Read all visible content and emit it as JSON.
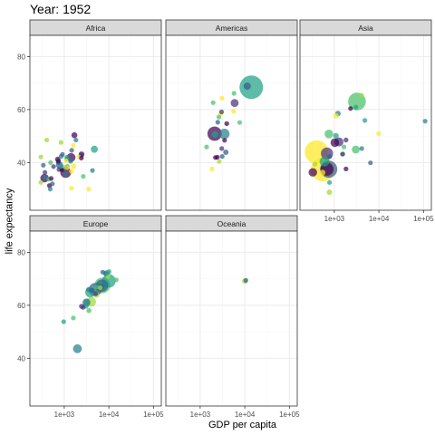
{
  "chart_data": {
    "type": "scatter",
    "title": "Year: 1952",
    "xlabel": "GDP per capita",
    "ylabel": "life expectancy",
    "x_scale": "log10",
    "xlim": [
      170,
      150000
    ],
    "ylim": [
      22,
      88
    ],
    "x_ticks": [
      1000,
      10000,
      100000
    ],
    "x_tick_labels": [
      "1e+03",
      "1e+04",
      "1e+05"
    ],
    "y_ticks": [
      40,
      60,
      80
    ],
    "y_tick_labels": [
      "40",
      "60",
      "80"
    ],
    "grid": true,
    "legend": "none",
    "panels": [
      {
        "name": "Africa",
        "points": [
          {
            "x": 2449,
            "y": 43.1,
            "size": 9
          },
          {
            "x": 3521,
            "y": 30.0,
            "size": 4
          },
          {
            "x": 1063,
            "y": 38.2,
            "size": 2.5
          },
          {
            "x": 851,
            "y": 47.6,
            "size": 0.4
          },
          {
            "x": 543,
            "y": 32.0,
            "size": 4.5
          },
          {
            "x": 339,
            "y": 39.0,
            "size": 2.4
          },
          {
            "x": 1173,
            "y": 38.5,
            "size": 5
          },
          {
            "x": 1071,
            "y": 35.5,
            "size": 1.3
          },
          {
            "x": 1179,
            "y": 38.1,
            "size": 2.7
          },
          {
            "x": 1103,
            "y": 40.7,
            "size": 0.2
          },
          {
            "x": 781,
            "y": 39.1,
            "size": 14
          },
          {
            "x": 2126,
            "y": 42.1,
            "size": 0.9
          },
          {
            "x": 1389,
            "y": 40.5,
            "size": 2.9
          },
          {
            "x": 2670,
            "y": 34.8,
            "size": 0.1
          },
          {
            "x": 1419,
            "y": 41.9,
            "size": 22
          },
          {
            "x": 376,
            "y": 34.5,
            "size": 1.4
          },
          {
            "x": 362,
            "y": 34.1,
            "size": 20
          },
          {
            "x": 4293,
            "y": 37.0,
            "size": 0.4
          },
          {
            "x": 485,
            "y": 30.0,
            "size": 0.3
          },
          {
            "x": 911,
            "y": 43.1,
            "size": 4.8
          },
          {
            "x": 510,
            "y": 34.0,
            "size": 2.7
          },
          {
            "x": 300,
            "y": 32.5,
            "size": 0.6
          },
          {
            "x": 854,
            "y": 42.3,
            "size": 6.5
          },
          {
            "x": 299,
            "y": 42.1,
            "size": 0.7
          },
          {
            "x": 576,
            "y": 38.5,
            "size": 0.9
          },
          {
            "x": 2388,
            "y": 42.7,
            "size": 1.0
          },
          {
            "x": 1443,
            "y": 36.7,
            "size": 4.8
          },
          {
            "x": 369,
            "y": 36.3,
            "size": 2.9
          },
          {
            "x": 452,
            "y": 33.7,
            "size": 3.8
          },
          {
            "x": 743,
            "y": 40.5,
            "size": 2.1
          },
          {
            "x": 1826,
            "y": 48.5,
            "size": 0.5
          },
          {
            "x": 1688,
            "y": 50.3,
            "size": 9.9
          },
          {
            "x": 468,
            "y": 31.3,
            "size": 6.4
          },
          {
            "x": 2423,
            "y": 41.7,
            "size": 0.5
          },
          {
            "x": 761,
            "y": 37.4,
            "size": 3.4
          },
          {
            "x": 1077,
            "y": 36.3,
            "size": 33
          },
          {
            "x": 493,
            "y": 40.0,
            "size": 2.5
          },
          {
            "x": 1600,
            "y": 46.5,
            "size": 0.3
          },
          {
            "x": 880,
            "y": 37.3,
            "size": 2.8
          },
          {
            "x": 1450,
            "y": 30.3,
            "size": 2.1
          },
          {
            "x": 4725,
            "y": 45.0,
            "size": 14
          },
          {
            "x": 1615,
            "y": 38.6,
            "size": 8.5
          },
          {
            "x": 1148,
            "y": 41.4,
            "size": 0.3
          },
          {
            "x": 716,
            "y": 41.2,
            "size": 8.3
          },
          {
            "x": 860,
            "y": 38.6,
            "size": 1.2
          },
          {
            "x": 1468,
            "y": 44.6,
            "size": 3.6
          },
          {
            "x": 735,
            "y": 39.9,
            "size": 5.8
          },
          {
            "x": 1147,
            "y": 42.0,
            "size": 2.7
          },
          {
            "x": 406,
            "y": 48.5,
            "size": 3.1
          }
        ]
      },
      {
        "name": "Americas",
        "points": [
          {
            "x": 5911,
            "y": 62.5,
            "size": 17.9
          },
          {
            "x": 2677,
            "y": 40.4,
            "size": 2.9
          },
          {
            "x": 2109,
            "y": 50.9,
            "size": 56.6
          },
          {
            "x": 11367,
            "y": 68.8,
            "size": 14.8
          },
          {
            "x": 3940,
            "y": 54.7,
            "size": 6.4
          },
          {
            "x": 2144,
            "y": 50.6,
            "size": 12.4
          },
          {
            "x": 2627,
            "y": 57.2,
            "size": 0.9
          },
          {
            "x": 5587,
            "y": 59.4,
            "size": 6.0
          },
          {
            "x": 1398,
            "y": 45.9,
            "size": 2.5
          },
          {
            "x": 3522,
            "y": 48.4,
            "size": 3.5
          },
          {
            "x": 3048,
            "y": 45.3,
            "size": 2.0
          },
          {
            "x": 2428,
            "y": 42.0,
            "size": 3.1
          },
          {
            "x": 1840,
            "y": 37.6,
            "size": 3.2
          },
          {
            "x": 2194,
            "y": 41.9,
            "size": 1.5
          },
          {
            "x": 2898,
            "y": 58.5,
            "size": 1.4
          },
          {
            "x": 3478,
            "y": 50.8,
            "size": 30.1
          },
          {
            "x": 3112,
            "y": 42.3,
            "size": 1.2
          },
          {
            "x": 2480,
            "y": 55.2,
            "size": 0.9
          },
          {
            "x": 1952,
            "y": 62.6,
            "size": 1.6
          },
          {
            "x": 3759,
            "y": 43.9,
            "size": 8.0
          },
          {
            "x": 3081,
            "y": 64.3,
            "size": 2.2
          },
          {
            "x": 3023,
            "y": 59.1,
            "size": 0.7
          },
          {
            "x": 13990,
            "y": 68.4,
            "size": 157.6
          },
          {
            "x": 5717,
            "y": 66.1,
            "size": 2.3
          },
          {
            "x": 7690,
            "y": 55.1,
            "size": 5.4
          }
        ]
      },
      {
        "name": "Asia",
        "points": [
          {
            "x": 779,
            "y": 28.8,
            "size": 8.4
          },
          {
            "x": 9867,
            "y": 50.9,
            "size": 0.1
          },
          {
            "x": 684,
            "y": 37.5,
            "size": 46.9
          },
          {
            "x": 368,
            "y": 39.4,
            "size": 4.7
          },
          {
            "x": 400,
            "y": 44.0,
            "size": 556.3
          },
          {
            "x": 3054,
            "y": 60.96,
            "size": 2.1
          },
          {
            "x": 547,
            "y": 37.4,
            "size": 372
          },
          {
            "x": 750,
            "y": 37.5,
            "size": 82
          },
          {
            "x": 3035,
            "y": 44.9,
            "size": 17.3
          },
          {
            "x": 4129,
            "y": 45.3,
            "size": 5.4
          },
          {
            "x": 4086,
            "y": 65.4,
            "size": 1.6
          },
          {
            "x": 3217,
            "y": 63.0,
            "size": 86.5
          },
          {
            "x": 1547,
            "y": 43.2,
            "size": 0.6
          },
          {
            "x": 1088,
            "y": 50.1,
            "size": 8.9
          },
          {
            "x": 1031,
            "y": 47.5,
            "size": 20.9
          },
          {
            "x": 108382,
            "y": 55.6,
            "size": 0.2
          },
          {
            "x": 4835,
            "y": 55.9,
            "size": 1.4
          },
          {
            "x": 1831,
            "y": 48.5,
            "size": 6.7
          },
          {
            "x": 786,
            "y": 42.2,
            "size": 0.8
          },
          {
            "x": 331,
            "y": 36.3,
            "size": 20.1
          },
          {
            "x": 546,
            "y": 36.2,
            "size": 9.2
          },
          {
            "x": 1828,
            "y": 37.6,
            "size": 0.5
          },
          {
            "x": 685,
            "y": 43.4,
            "size": 41.3
          },
          {
            "x": 1273,
            "y": 47.8,
            "size": 22.4
          },
          {
            "x": 6460,
            "y": 39.9,
            "size": 4.0
          },
          {
            "x": 2315,
            "y": 60.4,
            "size": 1.1
          },
          {
            "x": 1083,
            "y": 57.6,
            "size": 7.9
          },
          {
            "x": 1643,
            "y": 45.9,
            "size": 3.7
          },
          {
            "x": 1207,
            "y": 58.5,
            "size": 8.6
          },
          {
            "x": 757,
            "y": 50.8,
            "size": 21.3
          },
          {
            "x": 605,
            "y": 40.4,
            "size": 26.2
          },
          {
            "x": 1516,
            "y": 43.2,
            "size": 1.0
          },
          {
            "x": 782,
            "y": 32.5,
            "size": 4.96
          }
        ]
      },
      {
        "name": "Europe",
        "points": [
          {
            "x": 1601,
            "y": 55.2,
            "size": 1.3
          },
          {
            "x": 6137,
            "y": 66.8,
            "size": 6.9
          },
          {
            "x": 8343,
            "y": 68.0,
            "size": 8.7
          },
          {
            "x": 973,
            "y": 53.8,
            "size": 2.8
          },
          {
            "x": 2444,
            "y": 59.6,
            "size": 7.3
          },
          {
            "x": 3119,
            "y": 61.2,
            "size": 3.9
          },
          {
            "x": 6877,
            "y": 66.9,
            "size": 9.1
          },
          {
            "x": 9692,
            "y": 70.8,
            "size": 4.3
          },
          {
            "x": 6425,
            "y": 66.6,
            "size": 4.1
          },
          {
            "x": 7030,
            "y": 67.4,
            "size": 42.5
          },
          {
            "x": 7144,
            "y": 67.5,
            "size": 69.1
          },
          {
            "x": 3531,
            "y": 65.9,
            "size": 7.7
          },
          {
            "x": 5264,
            "y": 64.0,
            "size": 9.5
          },
          {
            "x": 7268,
            "y": 72.5,
            "size": 0.1
          },
          {
            "x": 5211,
            "y": 66.9,
            "size": 3.0
          },
          {
            "x": 4931,
            "y": 65.9,
            "size": 47.7
          },
          {
            "x": 2648,
            "y": 59.2,
            "size": 0.4
          },
          {
            "x": 8942,
            "y": 72.1,
            "size": 10.4
          },
          {
            "x": 10095,
            "y": 72.7,
            "size": 3.3
          },
          {
            "x": 4029,
            "y": 61.3,
            "size": 25.7
          },
          {
            "x": 3068,
            "y": 59.8,
            "size": 8.5
          },
          {
            "x": 3145,
            "y": 61.1,
            "size": 16.6
          },
          {
            "x": 3581,
            "y": 58.0,
            "size": 6.9
          },
          {
            "x": 5074,
            "y": 64.4,
            "size": 3.6
          },
          {
            "x": 4215,
            "y": 65.6,
            "size": 1.5
          },
          {
            "x": 3834,
            "y": 64.9,
            "size": 28.5
          },
          {
            "x": 8528,
            "y": 71.9,
            "size": 7.1
          },
          {
            "x": 14734,
            "y": 69.6,
            "size": 4.8
          },
          {
            "x": 1969,
            "y": 43.6,
            "size": 22.2
          },
          {
            "x": 9980,
            "y": 69.2,
            "size": 50.4
          }
        ]
      },
      {
        "name": "Oceania",
        "points": [
          {
            "x": 10040,
            "y": 69.12,
            "size": 8.7
          },
          {
            "x": 10557,
            "y": 69.39,
            "size": 1.99
          }
        ]
      }
    ]
  },
  "colors": {
    "palette": [
      "#440154",
      "#46337e",
      "#365c8d",
      "#277f8e",
      "#1fa187",
      "#4ac16d",
      "#a0da39",
      "#fde725"
    ],
    "strip_background": "#d9d9d9",
    "panel_border": "#333333",
    "grid_major": "#ebebeb",
    "grid_minor": "#f5f5f5"
  }
}
